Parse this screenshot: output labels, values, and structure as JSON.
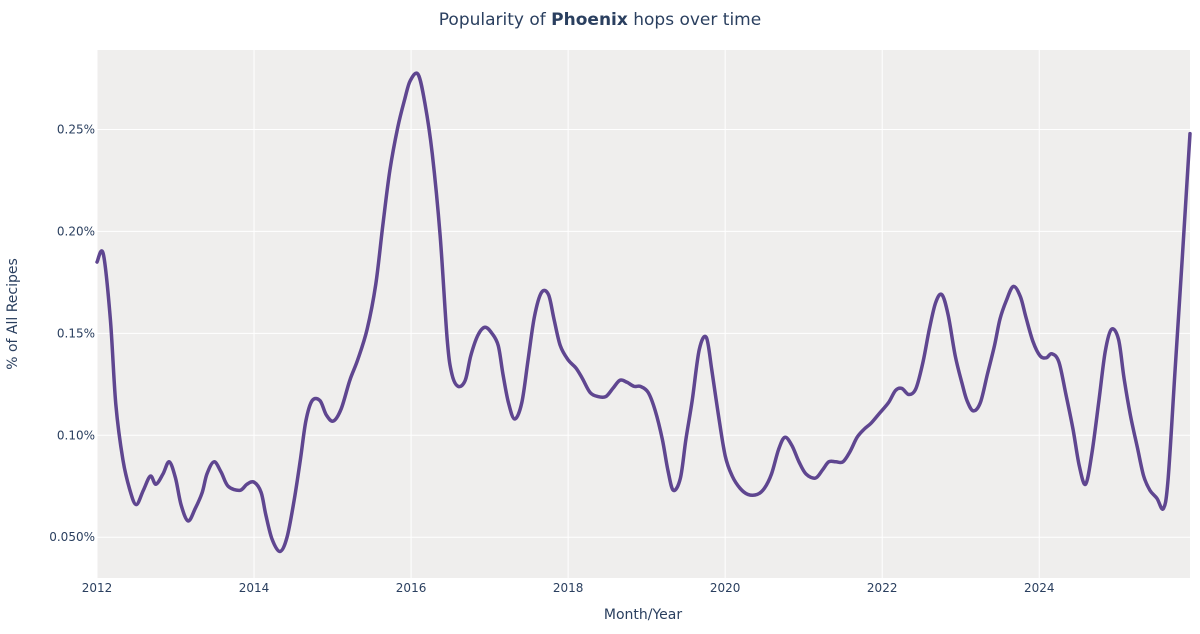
{
  "chart_data": {
    "type": "line",
    "title_prefix": "Popularity of ",
    "title_bold": "Phoenix",
    "title_suffix": " hops over time",
    "xlabel": "Month/Year",
    "ylabel": "% of All Recipes",
    "xlim": [
      2012.0,
      2025.92
    ],
    "ylim": [
      0.03,
      0.289
    ],
    "x_ticks": [
      2012,
      2014,
      2016,
      2018,
      2020,
      2022,
      2024
    ],
    "x_tick_labels": [
      "2012",
      "2014",
      "2016",
      "2018",
      "2020",
      "2022",
      "2024"
    ],
    "y_ticks": [
      0.05,
      0.1,
      0.15,
      0.2,
      0.25
    ],
    "y_tick_labels": [
      "0.050%",
      "0.10%",
      "0.15%",
      "0.20%",
      "0.25%"
    ],
    "grid": true,
    "line_color": "#5f4690",
    "plot_bg": "#efeeed",
    "series": [
      {
        "name": "Phoenix",
        "x": [
          2012.0,
          2012.08,
          2012.17,
          2012.24,
          2012.33,
          2012.42,
          2012.5,
          2012.59,
          2012.68,
          2012.75,
          2012.84,
          2012.92,
          2013.0,
          2013.07,
          2013.16,
          2013.25,
          2013.34,
          2013.4,
          2013.49,
          2013.58,
          2013.67,
          2013.82,
          2013.91,
          2014.0,
          2014.09,
          2014.15,
          2014.23,
          2014.33,
          2014.42,
          2014.51,
          2014.59,
          2014.66,
          2014.74,
          2014.84,
          2014.92,
          2015.01,
          2015.11,
          2015.22,
          2015.32,
          2015.44,
          2015.55,
          2015.64,
          2015.73,
          2015.83,
          2015.92,
          2015.99,
          2016.09,
          2016.18,
          2016.27,
          2016.37,
          2016.46,
          2016.52,
          2016.6,
          2016.69,
          2016.76,
          2016.85,
          2016.94,
          2017.03,
          2017.11,
          2017.17,
          2017.24,
          2017.32,
          2017.41,
          2017.49,
          2017.57,
          2017.66,
          2017.75,
          2017.82,
          2017.9,
          2018.0,
          2018.1,
          2018.18,
          2018.28,
          2018.38,
          2018.48,
          2018.57,
          2018.66,
          2018.75,
          2018.84,
          2018.92,
          2019.02,
          2019.11,
          2019.2,
          2019.27,
          2019.34,
          2019.43,
          2019.5,
          2019.58,
          2019.67,
          2019.76,
          2019.83,
          2019.91,
          2020.0,
          2020.09,
          2020.19,
          2020.29,
          2020.41,
          2020.5,
          2020.59,
          2020.68,
          2020.76,
          2020.85,
          2020.94,
          2021.03,
          2021.15,
          2021.24,
          2021.32,
          2021.41,
          2021.5,
          2021.59,
          2021.68,
          2021.77,
          2021.86,
          2021.97,
          2022.08,
          2022.17,
          2022.25,
          2022.34,
          2022.43,
          2022.52,
          2022.6,
          2022.68,
          2022.76,
          2022.84,
          2022.93,
          2023.02,
          2023.08,
          2023.16,
          2023.25,
          2023.34,
          2023.43,
          2023.5,
          2023.58,
          2023.67,
          2023.76,
          2023.83,
          2023.92,
          2024.01,
          2024.09,
          2024.16,
          2024.25,
          2024.34,
          2024.43,
          2024.51,
          2024.59,
          2024.67,
          2024.76,
          2024.84,
          2024.92,
          2025.01,
          2025.08,
          2025.16,
          2025.25,
          2025.33,
          2025.41,
          2025.5,
          2025.58,
          2025.64,
          2025.73,
          2025.82,
          2025.92
        ],
        "y": [
          0.185,
          0.189,
          0.157,
          0.115,
          0.088,
          0.073,
          0.066,
          0.073,
          0.08,
          0.076,
          0.081,
          0.087,
          0.079,
          0.066,
          0.058,
          0.064,
          0.072,
          0.081,
          0.087,
          0.082,
          0.075,
          0.073,
          0.076,
          0.077,
          0.072,
          0.061,
          0.049,
          0.043,
          0.05,
          0.068,
          0.088,
          0.107,
          0.117,
          0.117,
          0.11,
          0.107,
          0.113,
          0.127,
          0.137,
          0.152,
          0.174,
          0.203,
          0.23,
          0.251,
          0.265,
          0.274,
          0.277,
          0.262,
          0.238,
          0.198,
          0.147,
          0.13,
          0.124,
          0.127,
          0.139,
          0.149,
          0.153,
          0.15,
          0.144,
          0.13,
          0.116,
          0.108,
          0.116,
          0.137,
          0.158,
          0.17,
          0.169,
          0.157,
          0.144,
          0.137,
          0.133,
          0.128,
          0.121,
          0.119,
          0.119,
          0.123,
          0.127,
          0.126,
          0.124,
          0.124,
          0.121,
          0.112,
          0.098,
          0.083,
          0.073,
          0.079,
          0.098,
          0.117,
          0.142,
          0.148,
          0.132,
          0.111,
          0.09,
          0.08,
          0.074,
          0.071,
          0.071,
          0.074,
          0.081,
          0.093,
          0.099,
          0.095,
          0.087,
          0.081,
          0.079,
          0.083,
          0.087,
          0.087,
          0.087,
          0.092,
          0.099,
          0.103,
          0.106,
          0.111,
          0.116,
          0.122,
          0.123,
          0.12,
          0.123,
          0.136,
          0.152,
          0.165,
          0.169,
          0.159,
          0.139,
          0.125,
          0.117,
          0.112,
          0.116,
          0.13,
          0.144,
          0.157,
          0.166,
          0.173,
          0.168,
          0.158,
          0.146,
          0.139,
          0.138,
          0.14,
          0.136,
          0.12,
          0.103,
          0.085,
          0.076,
          0.091,
          0.117,
          0.141,
          0.152,
          0.147,
          0.128,
          0.11,
          0.094,
          0.08,
          0.073,
          0.069,
          0.064,
          0.078,
          0.132,
          0.186,
          0.248
        ]
      }
    ]
  }
}
